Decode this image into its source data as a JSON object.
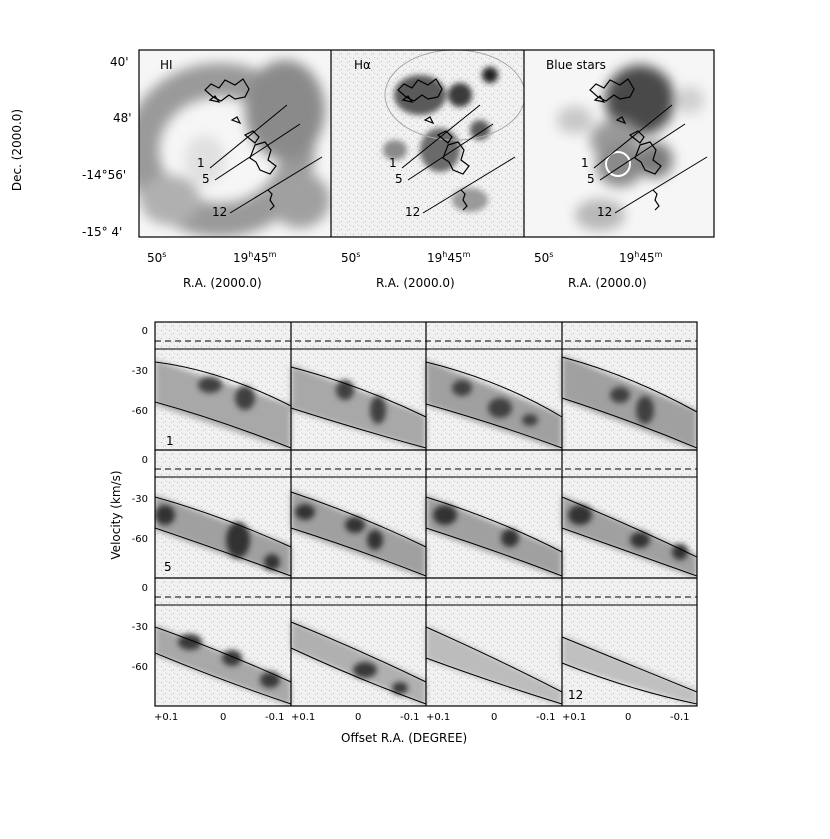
{
  "figure": {
    "top_panels": [
      {
        "label": "HI"
      },
      {
        "label": "Hα"
      },
      {
        "label": "Blue stars"
      }
    ],
    "dec_axis_title": "Dec. (2000.0)",
    "dec_ticks": [
      "40'",
      "48'",
      "-14°56'",
      "-15° 4'"
    ],
    "ra_axis_title": "R.A. (2000.0)",
    "ra_ticks": {
      "sec": "50",
      "sec_unit": "s",
      "hour_main": "19",
      "hour_unit": "h",
      "min_main": "45",
      "min_unit": "m"
    },
    "slice_labels": [
      "1",
      "5",
      "12"
    ],
    "velocity_axis_title": "Velocity (km/s)",
    "velocity_ticks": [
      "0",
      "-30",
      "-60"
    ],
    "offset_axis_title": "Offset R.A.  (DEGREE)",
    "offset_ticks": [
      "+0.1",
      "0",
      "-0.1"
    ],
    "pv_slice_labels": [
      "1",
      "5",
      "12"
    ]
  }
}
